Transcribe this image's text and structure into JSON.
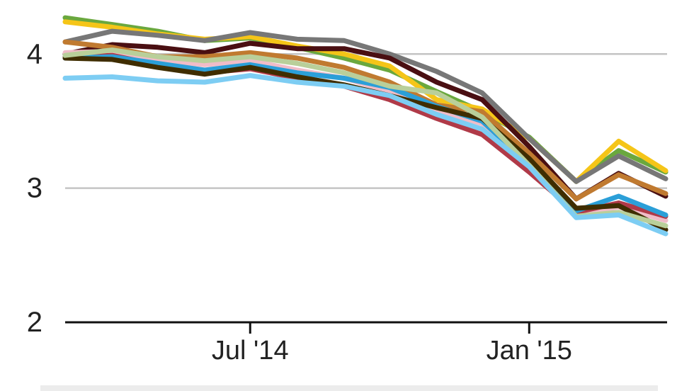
{
  "chart_data": {
    "type": "line",
    "title": "",
    "xlabel": "",
    "ylabel": "",
    "x": [
      "2014-03",
      "2014-04",
      "2014-05",
      "2014-06",
      "2014-07",
      "2014-08",
      "2014-09",
      "2014-10",
      "2014-11",
      "2014-12",
      "2015-01",
      "2015-02",
      "2015-03",
      "2015-04"
    ],
    "x_ticks": [
      {
        "x": "2014-07",
        "label": "Jul '14"
      },
      {
        "x": "2015-01",
        "label": "Jan '15"
      }
    ],
    "ylim": [
      2,
      4.35
    ],
    "y_ticks": [
      2,
      3,
      4
    ],
    "grid": true,
    "series": [
      {
        "color": "#6aa83e",
        "values": [
          4.27,
          4.22,
          4.17,
          4.1,
          4.12,
          4.05,
          3.97,
          3.88,
          3.72,
          3.57,
          3.38,
          3.05,
          3.28,
          3.12
        ]
      },
      {
        "color": "#f5c518",
        "values": [
          4.24,
          4.2,
          4.15,
          4.11,
          4.13,
          4.06,
          4.0,
          3.91,
          3.66,
          3.59,
          3.37,
          3.05,
          3.35,
          3.13
        ]
      },
      {
        "color": "#777777",
        "values": [
          4.09,
          4.17,
          4.14,
          4.1,
          4.16,
          4.11,
          4.1,
          4.0,
          3.87,
          3.71,
          3.37,
          3.05,
          3.24,
          3.07
        ]
      },
      {
        "color": "#4a0f12",
        "values": [
          4.0,
          4.07,
          4.05,
          4.01,
          4.08,
          4.04,
          4.04,
          3.97,
          3.79,
          3.66,
          3.31,
          2.92,
          3.11,
          2.94
        ]
      },
      {
        "color": "#c07a30",
        "values": [
          4.09,
          4.05,
          3.98,
          3.98,
          4.01,
          3.97,
          3.9,
          3.79,
          3.62,
          3.57,
          3.26,
          2.92,
          3.1,
          2.96
        ]
      },
      {
        "color": "#f0bcc8",
        "values": [
          4.01,
          4.02,
          3.96,
          3.92,
          3.95,
          3.88,
          3.82,
          3.72,
          3.58,
          3.48,
          3.18,
          2.8,
          2.86,
          2.76
        ]
      },
      {
        "color": "#b03a48",
        "values": [
          3.98,
          3.99,
          3.92,
          3.86,
          3.89,
          3.82,
          3.76,
          3.66,
          3.52,
          3.4,
          3.12,
          2.82,
          2.89,
          2.79
        ]
      },
      {
        "color": "#2b9fd8",
        "values": [
          3.97,
          3.98,
          3.93,
          3.88,
          3.92,
          3.86,
          3.82,
          3.75,
          3.61,
          3.5,
          3.18,
          2.83,
          2.94,
          2.8
        ]
      },
      {
        "color": "#3f2d00",
        "values": [
          3.97,
          3.96,
          3.9,
          3.85,
          3.9,
          3.83,
          3.77,
          3.69,
          3.6,
          3.52,
          3.22,
          2.85,
          2.87,
          2.69
        ]
      },
      {
        "color": "#b9cf9a",
        "values": [
          3.99,
          4.03,
          3.98,
          3.95,
          3.98,
          3.93,
          3.86,
          3.76,
          3.71,
          3.53,
          3.17,
          2.79,
          2.82,
          2.72
        ]
      },
      {
        "color": "#7dcdf3",
        "values": [
          3.82,
          3.83,
          3.8,
          3.79,
          3.84,
          3.79,
          3.76,
          3.69,
          3.55,
          3.44,
          3.16,
          2.78,
          2.8,
          2.66
        ]
      }
    ]
  }
}
